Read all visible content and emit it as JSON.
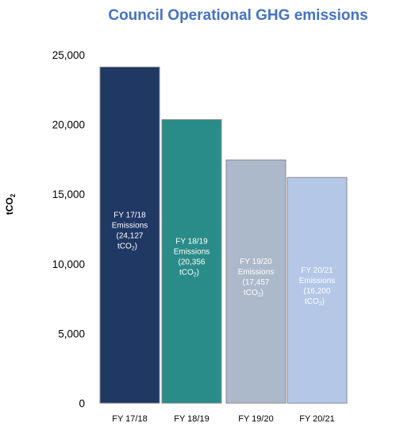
{
  "chart_data": {
    "type": "bar",
    "title": "Council Operational GHG emissions",
    "ylabel": "tCO2",
    "ylabel_main": "tCO",
    "ylabel_sub": "2",
    "xlabel": "",
    "categories": [
      "FY 17/18",
      "FY 18/19",
      "FY 19/20",
      "FY 20/21"
    ],
    "values": [
      24127,
      20356,
      17457,
      16200
    ],
    "ylim": [
      0,
      25000
    ],
    "yticks": [
      "0",
      "5,000",
      "10,000",
      "15,000",
      "20,000",
      "25,000"
    ],
    "ytick_values": [
      0,
      5000,
      10000,
      15000,
      20000,
      25000
    ],
    "grid": false,
    "legend": "none",
    "bar_colors": [
      "#1F3864",
      "#2A8C89",
      "#ACB9CA",
      "#B4C7E7"
    ],
    "bar_label_colors": [
      "#ffffff",
      "#ffffff",
      "#ffffff",
      "#ffffff"
    ],
    "data_labels": [
      {
        "period": "FY 17/18",
        "word": "Emissions",
        "value": "(24,127",
        "unit_main": "tCO",
        "unit_sub": "2",
        "unit_close": ")"
      },
      {
        "period": "FY 18/19",
        "word": "Emissions",
        "value": "(20,356",
        "unit_main": "tCO",
        "unit_sub": "2",
        "unit_close": ")"
      },
      {
        "period": "FY 19/20",
        "word": "Emissions",
        "value": "(17,457",
        "unit_main": "tCO",
        "unit_sub": "2",
        "unit_close": ")"
      },
      {
        "period": "FY 20/21",
        "word": "Emissions",
        "value": "(16,200",
        "unit_main": "tCO",
        "unit_sub": "2",
        "unit_close": ")"
      }
    ]
  }
}
